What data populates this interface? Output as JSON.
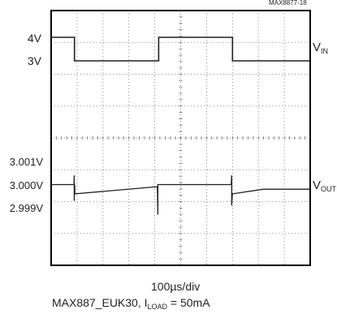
{
  "figure_id": "MAX8877-18",
  "time_div_label": "100µs/div",
  "caption": {
    "prefix": "MAX887_EUK30, I",
    "subscript": "LOAD",
    "suffix": " = 50mA"
  },
  "channels": {
    "vin": {
      "main": "V",
      "sub": "IN",
      "levels": [
        "4V",
        "3V"
      ]
    },
    "vout": {
      "main": "V",
      "sub": "OUT",
      "levels": [
        "3.001V",
        "3.000V",
        "2.999V"
      ]
    }
  },
  "chart_data": {
    "type": "line",
    "title": "",
    "xlabel": "100µs/div",
    "grid": true,
    "divisions": {
      "x": 10,
      "y": 8
    },
    "x_unit": "µs",
    "x_range": [
      0,
      1000
    ],
    "series": [
      {
        "name": "VIN",
        "unit": "V",
        "scale_ticks": [
          4,
          3
        ],
        "x": [
          0,
          90,
          90,
          415,
          415,
          700,
          700,
          1000
        ],
        "y": [
          4.0,
          4.0,
          3.0,
          3.0,
          4.0,
          4.0,
          3.0,
          3.0
        ]
      },
      {
        "name": "VOUT",
        "unit": "V",
        "scale_ticks": [
          3.001,
          3.0,
          2.999
        ],
        "x": [
          0,
          88,
          89,
          89,
          91,
          92,
          400,
          410,
          412,
          412,
          414,
          415,
          680,
          695,
          697,
          697,
          699,
          700,
          820,
          1000
        ],
        "y": [
          3.0,
          3.0,
          3.0004,
          2.9993,
          3.0,
          2.9996,
          2.9999,
          2.9999,
          2.9987,
          3.0,
          3.0,
          3.0,
          3.0,
          3.0,
          3.0004,
          2.9991,
          2.9995,
          2.9996,
          2.9998,
          2.9998
        ]
      }
    ],
    "colors": {
      "trace": "#231f20",
      "grid": "#6d6e71",
      "frame": "#000000"
    }
  }
}
